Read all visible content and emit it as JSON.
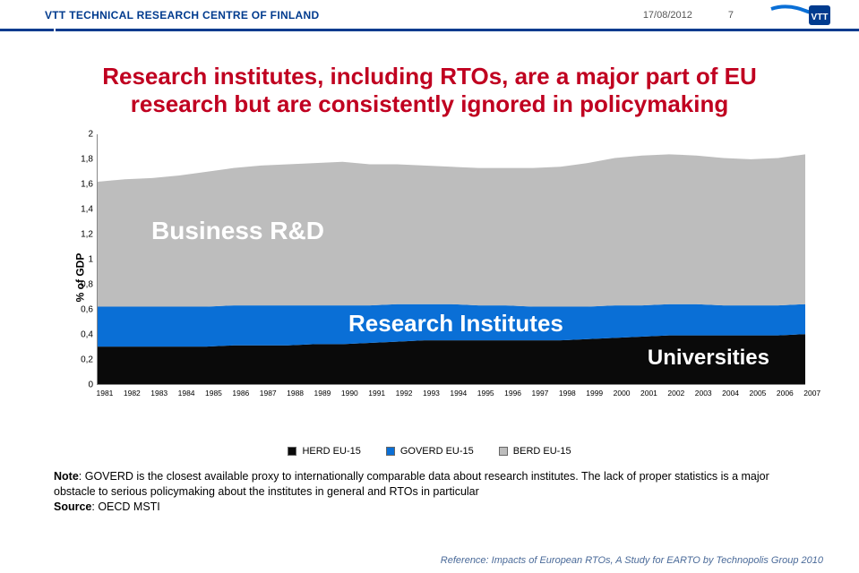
{
  "header": {
    "org": "VTT TECHNICAL RESEARCH CENTRE OF FINLAND",
    "date": "17/08/2012",
    "page": "7"
  },
  "title": "Research institutes, including RTOs, are a major part of EU research but are consistently ignored in policymaking",
  "chart": {
    "type": "area",
    "ylabel": "% of GDP",
    "ylim": [
      0,
      2
    ],
    "ytick_step": 0.2,
    "yticks": [
      "0",
      "0,2",
      "0,4",
      "0,6",
      "0,8",
      "1",
      "1,2",
      "1,4",
      "1,6",
      "1,8",
      "2"
    ],
    "years": [
      "1981",
      "1982",
      "1983",
      "1984",
      "1985",
      "1986",
      "1987",
      "1988",
      "1989",
      "1990",
      "1991",
      "1992",
      "1993",
      "1994",
      "1995",
      "1996",
      "1997",
      "1998",
      "1999",
      "2000",
      "2001",
      "2002",
      "2003",
      "2004",
      "2005",
      "2006",
      "2007"
    ],
    "series": [
      {
        "key": "herd",
        "label": "HERD EU-15",
        "color": "#0a0a0a",
        "values": [
          0.3,
          0.3,
          0.3,
          0.3,
          0.3,
          0.31,
          0.31,
          0.31,
          0.32,
          0.32,
          0.33,
          0.34,
          0.35,
          0.35,
          0.35,
          0.35,
          0.35,
          0.35,
          0.36,
          0.37,
          0.38,
          0.39,
          0.39,
          0.39,
          0.39,
          0.39,
          0.4
        ]
      },
      {
        "key": "goverd",
        "label": "GOVERD EU-15",
        "color": "#0a6fd6",
        "values": [
          0.32,
          0.32,
          0.32,
          0.32,
          0.32,
          0.32,
          0.32,
          0.32,
          0.31,
          0.31,
          0.3,
          0.3,
          0.29,
          0.29,
          0.28,
          0.28,
          0.27,
          0.27,
          0.26,
          0.26,
          0.25,
          0.25,
          0.25,
          0.24,
          0.24,
          0.24,
          0.24
        ]
      },
      {
        "key": "berd",
        "label": "BERD EU-15",
        "color": "#bdbdbd",
        "values": [
          1.0,
          1.02,
          1.03,
          1.05,
          1.08,
          1.1,
          1.12,
          1.13,
          1.14,
          1.15,
          1.13,
          1.12,
          1.11,
          1.1,
          1.1,
          1.1,
          1.11,
          1.12,
          1.15,
          1.18,
          1.2,
          1.2,
          1.19,
          1.18,
          1.17,
          1.18,
          1.2
        ]
      }
    ],
    "background_color": "#ffffff",
    "axis_color": "#888888",
    "tick_fontsize": 10,
    "label_fontsize": 12,
    "overlay_labels": [
      {
        "text": "Business R&D",
        "class": "lbl-business"
      },
      {
        "text": "Research Institutes",
        "class": "lbl-research"
      },
      {
        "text": "Universities",
        "class": "lbl-univ"
      }
    ],
    "legend_position": "bottom-center"
  },
  "note": {
    "prefix": "Note",
    "body": ": GOVERD is the closest available proxy to internationally comparable data about research institutes. The lack of proper statistics is a major obstacle to serious policymaking about the institutes in general and RTOs in particular",
    "source_prefix": "Source",
    "source": ": OECD MSTI"
  },
  "reference": "Reference: Impacts of European RTOs, A Study for EARTO by Technopolis Group 2010",
  "colors": {
    "brand_blue": "#003b8e",
    "title_red": "#c00020",
    "ref_blue": "#4a6a99"
  }
}
